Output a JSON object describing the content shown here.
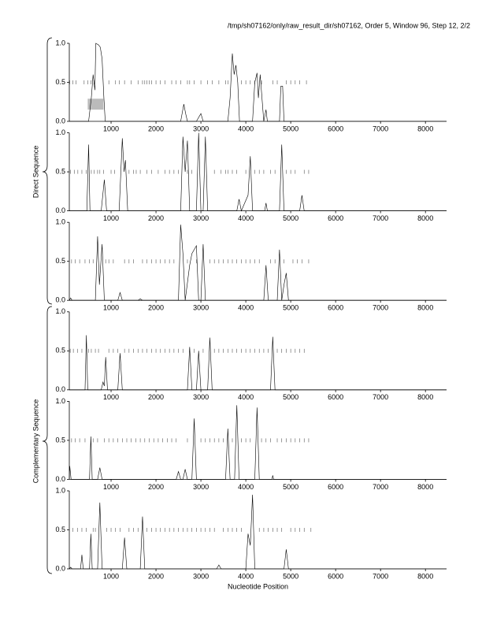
{
  "chart_data": [
    {
      "type": "line",
      "title": "/tmp/sh07162/only/raw_result_dir/sh07162, Order 5, Window 96, Step 12, 2/2",
      "x": [
        70,
        500,
        560,
        600,
        640,
        660,
        720,
        760,
        800,
        840,
        870,
        900,
        2550,
        2620,
        2660,
        2700,
        2900,
        3000,
        3050,
        3600,
        3650,
        3700,
        3740,
        3780,
        3820,
        3860,
        4150,
        4200,
        4250,
        4280,
        4320,
        4400,
        4450,
        4480,
        4750,
        4780,
        4820,
        4850,
        8470
      ],
      "values": [
        0,
        0,
        0.3,
        0.6,
        0.4,
        1.0,
        0.98,
        0.95,
        0.8,
        0.3,
        0,
        0,
        0,
        0.22,
        0.1,
        0,
        0,
        0.1,
        0,
        0,
        0.3,
        0.87,
        0.6,
        0.72,
        0.5,
        0,
        0,
        0.5,
        0.62,
        0.3,
        0.6,
        0,
        0.15,
        0,
        0,
        0.45,
        0.45,
        0,
        0
      ],
      "markers": [
        80,
        150,
        220,
        400,
        480,
        550,
        620,
        950,
        1100,
        1180,
        1300,
        1450,
        1600,
        1700,
        1750,
        1800,
        1850,
        1900,
        2000,
        2100,
        2200,
        2350,
        2450,
        2550,
        2700,
        2750,
        2850,
        3000,
        3150,
        3250,
        3400,
        3550,
        3600,
        3900,
        4000,
        4100,
        4200,
        4350,
        4600,
        4700,
        4900,
        5000,
        5100,
        5200,
        5350
      ],
      "highlight": {
        "x": [
          480,
          830
        ],
        "y": [
          0.15,
          0.29
        ]
      },
      "xlim": [
        70,
        8470
      ],
      "xticks": [
        1000,
        2000,
        3000,
        4000,
        5000,
        6000,
        7000,
        8000
      ],
      "ylim": [
        0,
        1
      ],
      "yticks": [
        {
          "value": 0,
          "label": "0.0"
        },
        0.5,
        {
          "value": 1,
          "label": "1.0"
        }
      ],
      "color": "#000000"
    },
    {
      "type": "line",
      "ylabel": "Direct Sequence",
      "x": [
        70,
        460,
        500,
        530,
        780,
        850,
        900,
        1180,
        1250,
        1290,
        1320,
        1370,
        2550,
        2600,
        2650,
        2700,
        2750,
        2900,
        2950,
        3000,
        3050,
        3100,
        3150,
        3800,
        3850,
        3900,
        4050,
        4100,
        4150,
        4420,
        4450,
        4480,
        4750,
        4800,
        4850,
        5200,
        5250,
        5300,
        8470
      ],
      "values": [
        0,
        0,
        0.85,
        0,
        0,
        0.4,
        0,
        0,
        0.93,
        0.5,
        0.65,
        0,
        0,
        0.95,
        0.5,
        0.9,
        0,
        0,
        1.0,
        0,
        0,
        0.95,
        0,
        0,
        0.15,
        0,
        0.2,
        0.7,
        0,
        0,
        0.1,
        0,
        0,
        0.85,
        0,
        0,
        0.2,
        0,
        0
      ],
      "markers": [
        100,
        180,
        260,
        350,
        450,
        560,
        620,
        700,
        750,
        830,
        1000,
        1080,
        1400,
        1500,
        1560,
        1650,
        1800,
        1900,
        2050,
        2200,
        2300,
        2400,
        2500,
        2700,
        2800,
        3300,
        3450,
        3550,
        3600,
        3700,
        3800,
        4000,
        4200,
        4300,
        4400,
        4550,
        4650,
        4900,
        5000,
        5100,
        5300,
        5400
      ],
      "xlim": [
        70,
        8470
      ],
      "xticks": [
        1000,
        2000,
        3000,
        4000,
        5000,
        6000,
        7000,
        8000
      ],
      "ylim": [
        0,
        1
      ],
      "yticks": [
        {
          "value": 0,
          "label": "0.0"
        },
        0.5,
        {
          "value": 1,
          "label": "1.0"
        }
      ],
      "color": "#000000"
    },
    {
      "type": "line",
      "x": [
        70,
        100,
        130,
        650,
        700,
        740,
        800,
        850,
        1150,
        1200,
        1250,
        1600,
        1650,
        1700,
        2500,
        2550,
        2600,
        2650,
        2750,
        2800,
        2900,
        2950,
        3000,
        3050,
        3100,
        4400,
        4450,
        4500,
        4700,
        4750,
        4800,
        4850,
        4900,
        4950,
        8470
      ],
      "values": [
        0,
        0.03,
        0,
        0,
        0.82,
        0.2,
        0.72,
        0,
        0,
        0.1,
        0,
        0,
        0.02,
        0,
        0,
        0.97,
        0.6,
        0,
        0.45,
        0.6,
        0.7,
        0,
        0,
        0.72,
        0,
        0,
        0.45,
        0,
        0,
        0.65,
        0,
        0.2,
        0.35,
        0,
        0
      ],
      "markers": [
        120,
        200,
        300,
        420,
        520,
        600,
        880,
        950,
        1050,
        1300,
        1400,
        1500,
        1700,
        1800,
        1900,
        2000,
        2100,
        2200,
        2300,
        2400,
        2700,
        2900,
        3200,
        3300,
        3400,
        3500,
        3600,
        3700,
        3800,
        3900,
        4000,
        4100,
        4200,
        4300,
        4550,
        4650,
        4850,
        5050,
        5150,
        5250,
        5400
      ],
      "xlim": [
        70,
        8470
      ],
      "xticks": [
        1000,
        2000,
        3000,
        4000,
        5000,
        6000,
        7000,
        8000
      ],
      "ylim": [
        0,
        1
      ],
      "yticks": [
        {
          "value": 0,
          "label": "0.0"
        },
        0.5,
        {
          "value": 1,
          "label": "1.0"
        }
      ],
      "color": "#000000"
    },
    {
      "type": "line",
      "x": [
        70,
        420,
        450,
        480,
        780,
        820,
        850,
        880,
        920,
        1150,
        1200,
        1250,
        2700,
        2750,
        2800,
        2900,
        2950,
        3000,
        3150,
        3200,
        3250,
        4550,
        4600,
        4650,
        8470
      ],
      "values": [
        0,
        0,
        0.7,
        0,
        0,
        0.1,
        0.05,
        0.42,
        0,
        0,
        0.47,
        0,
        0,
        0.55,
        0,
        0,
        0.5,
        0,
        0,
        0.67,
        0,
        0,
        0.68,
        0,
        0
      ],
      "markers": [
        90,
        160,
        250,
        350,
        500,
        560,
        650,
        720,
        950,
        1050,
        1150,
        1300,
        1400,
        1500,
        1600,
        1700,
        1800,
        1900,
        2000,
        2100,
        2200,
        2300,
        2400,
        2500,
        2600,
        2850,
        3050,
        3300,
        3400,
        3500,
        3600,
        3700,
        3800,
        3900,
        4000,
        4100,
        4200,
        4300,
        4400,
        4500,
        4700,
        4800,
        4900,
        5000,
        5100,
        5200,
        5300
      ],
      "xlim": [
        70,
        8470
      ],
      "xticks": [
        1000,
        2000,
        3000,
        4000,
        5000,
        6000,
        7000,
        8000
      ],
      "ylim": [
        0,
        1
      ],
      "yticks": [
        {
          "value": 0,
          "label": "0.0"
        },
        0.5,
        {
          "value": 1,
          "label": "1.0"
        }
      ],
      "color": "#000000"
    },
    {
      "type": "line",
      "ylabel": "Complementary Sequence",
      "x": [
        70,
        80,
        110,
        520,
        550,
        580,
        700,
        750,
        800,
        2450,
        2500,
        2550,
        2600,
        2650,
        2700,
        2800,
        2850,
        2900,
        3550,
        3600,
        3650,
        3750,
        3800,
        3850,
        4200,
        4250,
        4300,
        4580,
        4600,
        4620,
        8470
      ],
      "values": [
        0,
        0.17,
        0,
        0,
        0.55,
        0,
        0,
        0.15,
        0,
        0,
        0.1,
        0,
        0,
        0.13,
        0,
        0,
        0.78,
        0,
        0,
        0.65,
        0,
        0,
        0.95,
        0,
        0,
        0.92,
        0,
        0,
        0.05,
        0,
        0
      ],
      "markers": [
        120,
        200,
        300,
        420,
        600,
        700,
        850,
        950,
        1050,
        1150,
        1250,
        1350,
        1450,
        1550,
        1650,
        1750,
        1850,
        1950,
        2050,
        2150,
        2250,
        2350,
        2450,
        2700,
        3000,
        3100,
        3200,
        3300,
        3400,
        3500,
        3700,
        3900,
        4000,
        4100,
        4350,
        4450,
        4550,
        4700,
        4800,
        4900,
        5000,
        5100,
        5200,
        5300,
        5400
      ],
      "xlim": [
        70,
        8470
      ],
      "xticks": [
        1000,
        2000,
        3000,
        4000,
        5000,
        6000,
        7000,
        8000
      ],
      "ylim": [
        0,
        1
      ],
      "yticks": [
        {
          "value": 0,
          "label": "0.0"
        },
        0.5,
        {
          "value": 1,
          "label": "1.0"
        }
      ],
      "color": "#000000"
    },
    {
      "type": "line",
      "x": [
        70,
        100,
        130,
        320,
        350,
        380,
        520,
        550,
        580,
        700,
        750,
        800,
        1250,
        1300,
        1350,
        1650,
        1700,
        1750,
        3350,
        3400,
        3450,
        4000,
        4050,
        4100,
        4150,
        4200,
        4850,
        4900,
        4950,
        8470
      ],
      "values": [
        0,
        0.02,
        0,
        0,
        0.18,
        0,
        0,
        0.45,
        0,
        0,
        0.85,
        0,
        0,
        0.4,
        0,
        0,
        0.67,
        0,
        0,
        0.05,
        0,
        0,
        0.45,
        0.3,
        0.95,
        0,
        0,
        0.25,
        0,
        0
      ],
      "markers": [
        150,
        250,
        350,
        450,
        600,
        650,
        900,
        1000,
        1100,
        1200,
        1400,
        1500,
        1600,
        1800,
        1900,
        2000,
        2100,
        2200,
        2300,
        2400,
        2500,
        2600,
        2700,
        2800,
        2900,
        3000,
        3100,
        3200,
        3300,
        3500,
        3600,
        3700,
        3800,
        3900,
        4300,
        4400,
        4500,
        4600,
        4700,
        4800,
        5000,
        5100,
        5200,
        5300,
        5450
      ],
      "xlim": [
        70,
        8470
      ],
      "xticks": [
        1000,
        2000,
        3000,
        4000,
        5000,
        6000,
        7000,
        8000
      ],
      "ylim": [
        0,
        1
      ],
      "yticks": [
        {
          "value": 0,
          "label": "0.0"
        },
        0.5,
        {
          "value": 1,
          "label": "1.0"
        }
      ],
      "color": "#000000",
      "xlabel": "Nucleotide Position"
    }
  ]
}
